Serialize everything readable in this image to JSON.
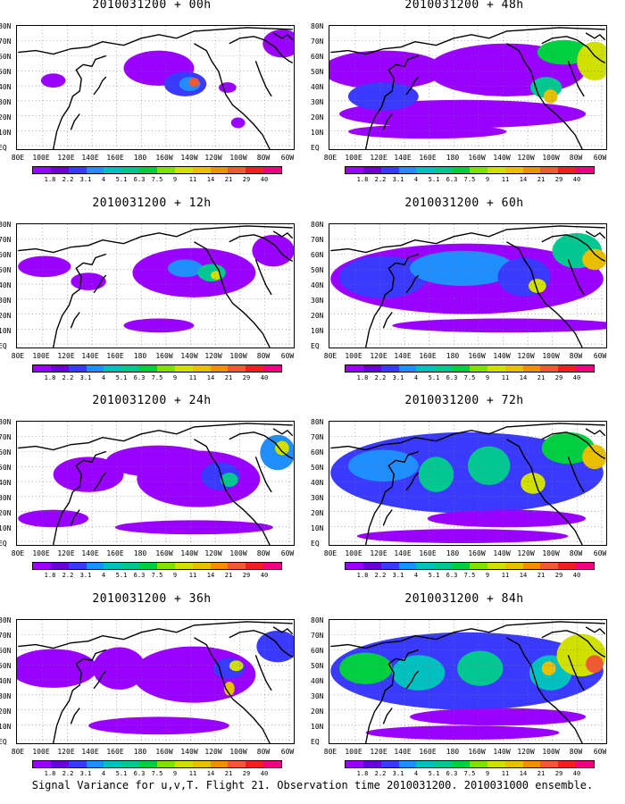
{
  "panels": [
    {
      "title": "2010031200 + 00h"
    },
    {
      "title": "2010031200 + 48h"
    },
    {
      "title": "2010031200 + 12h"
    },
    {
      "title": "2010031200 + 60h"
    },
    {
      "title": "2010031200 + 24h"
    },
    {
      "title": "2010031200 + 72h"
    },
    {
      "title": "2010031200 + 36h"
    },
    {
      "title": "2010031200 + 84h"
    }
  ],
  "lat_labels": [
    "80N",
    "70N",
    "60N",
    "50N",
    "40N",
    "30N",
    "20N",
    "10N",
    "EQ"
  ],
  "lon_labels": [
    "80E",
    "100E",
    "120E",
    "140E",
    "160E",
    "180",
    "160W",
    "140W",
    "120W",
    "100W",
    "80W",
    "60W"
  ],
  "colorbar": {
    "labels": [
      "1.8",
      "2.2",
      "3.1",
      "4",
      "5.1",
      "6.3",
      "7.5",
      "9",
      "11",
      "14",
      "21",
      "29",
      "40"
    ],
    "colors": [
      "#9a00ff",
      "#6b00d6",
      "#3a3aff",
      "#1f8fff",
      "#00c0c0",
      "#00c890",
      "#00d040",
      "#80e000",
      "#d0e000",
      "#e8c000",
      "#f09000",
      "#f05a30",
      "#f02020",
      "#f00080"
    ]
  },
  "caption": "Signal Variance for u,v,T. Flight 21. Observation time 2010031200. 2010031000 ensemble."
}
